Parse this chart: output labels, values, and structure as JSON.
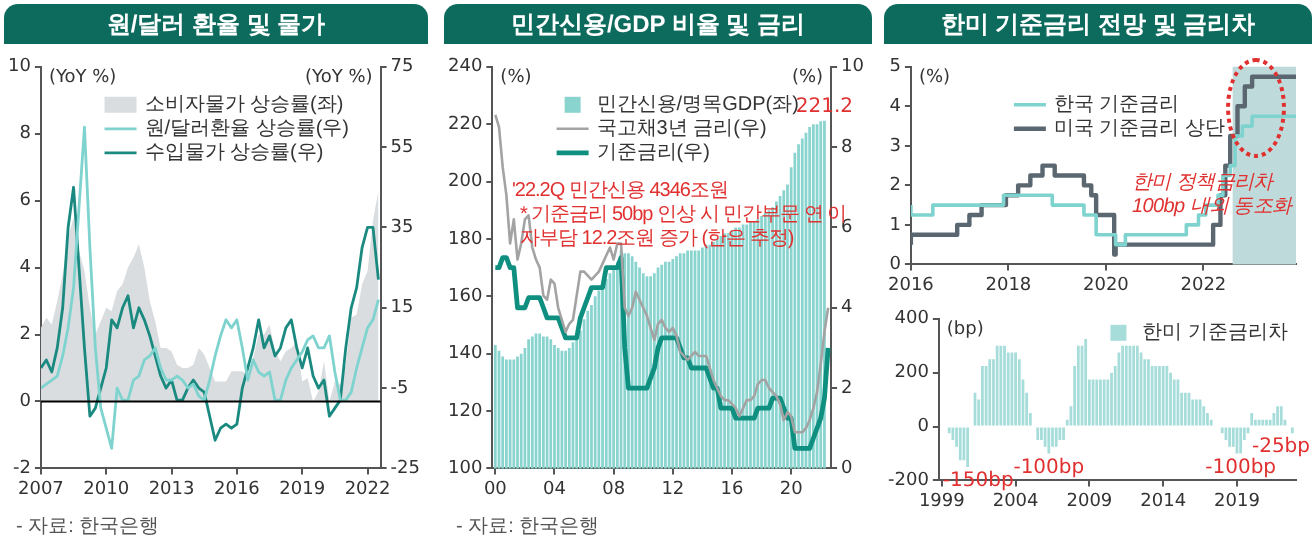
{
  "chart_data": [
    {
      "type": "line",
      "title": "원/달러 환율 및 물가",
      "ylabel": "(YoY %)",
      "y2label": "(YoY %)",
      "marker": "none",
      "legend": "top",
      "grid": false,
      "x": [
        2007,
        2007.25,
        2007.5,
        2007.75,
        2008,
        2008.25,
        2008.5,
        2008.75,
        2009,
        2009.25,
        2009.5,
        2009.75,
        2010,
        2010.25,
        2010.5,
        2010.75,
        2011,
        2011.25,
        2011.5,
        2011.75,
        2012,
        2012.25,
        2012.5,
        2012.75,
        2013,
        2013.25,
        2013.5,
        2013.75,
        2014,
        2014.25,
        2014.5,
        2014.75,
        2015,
        2015.25,
        2015.5,
        2015.75,
        2016,
        2016.25,
        2016.5,
        2016.75,
        2017,
        2017.25,
        2017.5,
        2017.75,
        2018,
        2018.25,
        2018.5,
        2018.75,
        2019,
        2019.25,
        2019.5,
        2019.75,
        2020,
        2020.25,
        2020.5,
        2020.75,
        2021,
        2021.25,
        2021.5,
        2021.75,
        2022,
        2022.25,
        2022.5
      ],
      "xlim": [
        2007,
        2022.6
      ],
      "xticks": [
        2007,
        2010,
        2013,
        2016,
        2019,
        2022
      ],
      "ylim": [
        -2,
        10
      ],
      "yticks": [
        -2,
        0,
        2,
        4,
        6,
        8,
        10
      ],
      "y2lim": [
        -25,
        75
      ],
      "y2ticks": [
        -25,
        -5,
        15,
        35,
        55,
        75
      ],
      "ref_lines": [
        {
          "axis": "y",
          "value": 0,
          "color": "#000000"
        }
      ],
      "series": [
        {
          "name": "소비자물가 상승률(좌)",
          "type": "area",
          "color": "#d9dde0",
          "values": [
            2.2,
            2.5,
            2.3,
            3.0,
            3.8,
            4.9,
            5.5,
            4.5,
            3.9,
            2.8,
            2.0,
            2.4,
            2.8,
            2.7,
            3.3,
            3.5,
            4.0,
            4.3,
            4.7,
            4.0,
            3.0,
            2.4,
            1.6,
            1.6,
            1.5,
            1.1,
            1.0,
            1.0,
            1.1,
            1.6,
            1.4,
            1.0,
            0.6,
            0.6,
            0.6,
            0.9,
            0.9,
            0.9,
            0.8,
            1.3,
            2.0,
            2.0,
            2.3,
            1.5,
            1.2,
            1.5,
            1.6,
            1.8,
            0.6,
            0.7,
            0.0,
            0.3,
            1.2,
            0.0,
            0.6,
            0.5,
            1.1,
            2.5,
            2.6,
            3.5,
            3.9,
            5.4,
            6.3
          ]
        },
        {
          "name": "원/달러환율 상승률(우)",
          "axis": "y2",
          "color": "#7fd3cf",
          "values": [
            -5,
            -4,
            -3,
            -2,
            3,
            10,
            20,
            40,
            60,
            30,
            5,
            -10,
            -15,
            -20,
            -5,
            -8,
            -8,
            -3,
            -2,
            2,
            3,
            5,
            0,
            -3,
            -3,
            -2,
            -3,
            -5,
            -4,
            -7,
            -8,
            -3,
            3,
            8,
            12,
            10,
            12,
            5,
            -3,
            2,
            -1,
            -2,
            -1,
            -8,
            -8,
            -3,
            0,
            2,
            4,
            7,
            8,
            5,
            5,
            8,
            -1,
            -8,
            -8,
            -6,
            0,
            5,
            10,
            12,
            17
          ]
        },
        {
          "name": "수입물가 상승률(우)",
          "axis": "y2",
          "color": "#1a8a80",
          "values": [
            0,
            2,
            -1,
            5,
            15,
            35,
            45,
            25,
            5,
            -12,
            -10,
            -5,
            0,
            12,
            10,
            15,
            18,
            10,
            15,
            12,
            8,
            3,
            -2,
            -5,
            -3,
            -8,
            -8,
            -5,
            -3,
            -5,
            -6,
            -12,
            -18,
            -15,
            -14,
            -15,
            -14,
            -5,
            0,
            5,
            12,
            5,
            8,
            3,
            5,
            10,
            12,
            5,
            0,
            5,
            -2,
            -5,
            -3,
            -12,
            -10,
            -8,
            5,
            15,
            20,
            30,
            35,
            35,
            22
          ]
        }
      ],
      "annotations": [
        "- 자료: 한국은행"
      ]
    },
    {
      "type": "bar",
      "title": "민간신용/GDP 비율 및 금리",
      "ylabel": "(%)",
      "y2label": "(%)",
      "marker": "none",
      "legend": "top",
      "grid": false,
      "x": [
        2000,
        2000.25,
        2000.5,
        2000.75,
        2001,
        2001.25,
        2001.5,
        2001.75,
        2002,
        2002.25,
        2002.5,
        2002.75,
        2003,
        2003.25,
        2003.5,
        2003.75,
        2004,
        2004.25,
        2004.5,
        2004.75,
        2005,
        2005.25,
        2005.5,
        2005.75,
        2006,
        2006.25,
        2006.5,
        2006.75,
        2007,
        2007.25,
        2007.5,
        2007.75,
        2008,
        2008.25,
        2008.5,
        2008.75,
        2009,
        2009.25,
        2009.5,
        2009.75,
        2010,
        2010.25,
        2010.5,
        2010.75,
        2011,
        2011.25,
        2011.5,
        2011.75,
        2012,
        2012.25,
        2012.5,
        2012.75,
        2013,
        2013.25,
        2013.5,
        2013.75,
        2014,
        2014.25,
        2014.5,
        2014.75,
        2015,
        2015.25,
        2015.5,
        2015.75,
        2016,
        2016.25,
        2016.5,
        2016.75,
        2017,
        2017.25,
        2017.5,
        2017.75,
        2018,
        2018.25,
        2018.5,
        2018.75,
        2019,
        2019.25,
        2019.5,
        2019.75,
        2020,
        2020.25,
        2020.5,
        2020.75,
        2021,
        2021.25,
        2021.5,
        2021.75,
        2022,
        2022.25,
        2022.5
      ],
      "xlim": [
        1999.8,
        2022.7
      ],
      "xticks": [
        {
          "value": 2000,
          "label": "00"
        },
        {
          "value": 2004,
          "label": "04"
        },
        {
          "value": 2008,
          "label": "08"
        },
        {
          "value": 2012,
          "label": "12"
        },
        {
          "value": 2016,
          "label": "16"
        },
        {
          "value": 2020,
          "label": "20"
        }
      ],
      "ylim": [
        100,
        240
      ],
      "yticks": [
        100,
        120,
        140,
        160,
        180,
        200,
        220,
        240
      ],
      "y2lim": [
        0,
        10
      ],
      "y2ticks": [
        0,
        2,
        4,
        6,
        8,
        10
      ],
      "series": [
        {
          "name": "민간신용/명목GDP(좌)",
          "color": "#8ad4d0",
          "values": [
            143,
            141,
            139,
            138,
            138,
            138,
            139,
            140,
            142,
            145,
            146,
            147,
            147,
            146,
            146,
            145,
            143,
            142,
            141,
            141,
            142,
            144,
            146,
            148,
            152,
            155,
            157,
            160,
            162,
            164,
            166,
            168,
            170,
            172,
            176,
            175,
            175,
            174,
            172,
            170,
            168,
            167,
            167,
            168,
            170,
            171,
            172,
            172,
            173,
            174,
            175,
            175,
            176,
            176,
            176,
            176,
            177,
            178,
            178,
            179,
            180,
            181,
            182,
            182,
            183,
            184,
            184,
            185,
            185,
            186,
            186,
            187,
            188,
            189,
            190,
            191,
            193,
            195,
            197,
            199,
            205,
            210,
            213,
            215,
            217,
            219,
            220,
            220,
            221,
            221.2,
            null
          ]
        },
        {
          "name": "국고채3년 금리(우)",
          "type": "line",
          "axis": "y2",
          "color": "#a3a3a3",
          "values": [
            8.8,
            8.5,
            7.5,
            6.8,
            5.6,
            6.2,
            5.2,
            5.6,
            6.2,
            6.3,
            5.5,
            5.2,
            5.0,
            4.3,
            4.2,
            4.7,
            4.6,
            4.0,
            3.7,
            3.4,
            3.6,
            3.7,
            4.3,
            4.9,
            4.9,
            4.8,
            4.7,
            4.8,
            4.9,
            5.1,
            5.3,
            5.5,
            5.2,
            5.6,
            5.6,
            4.0,
            3.8,
            4.0,
            4.4,
            4.2,
            4.0,
            3.8,
            3.5,
            3.2,
            3.6,
            3.7,
            3.5,
            3.4,
            3.5,
            3.3,
            2.9,
            2.8,
            2.7,
            2.8,
            2.9,
            2.8,
            2.8,
            2.8,
            2.5,
            2.2,
            2.0,
            1.8,
            1.7,
            1.7,
            1.6,
            1.5,
            1.3,
            1.5,
            1.7,
            1.7,
            1.8,
            2.1,
            2.2,
            2.2,
            2.0,
            1.9,
            1.8,
            1.6,
            1.2,
            1.4,
            1.3,
            0.9,
            0.9,
            0.9,
            1.0,
            1.2,
            1.5,
            1.9,
            2.6,
            3.4,
            4.0
          ]
        },
        {
          "name": "기준금리(우)",
          "type": "line",
          "axis": "y2",
          "color": "#0f8f80",
          "values": [
            5.0,
            5.0,
            5.25,
            5.25,
            5.0,
            5.0,
            4.0,
            4.0,
            4.0,
            4.25,
            4.25,
            4.25,
            4.25,
            4.0,
            3.75,
            3.75,
            3.75,
            3.75,
            3.5,
            3.25,
            3.25,
            3.25,
            3.25,
            3.75,
            4.0,
            4.25,
            4.5,
            4.5,
            4.5,
            4.5,
            5.0,
            5.0,
            5.0,
            5.0,
            5.25,
            3.0,
            2.0,
            2.0,
            2.0,
            2.0,
            2.0,
            2.0,
            2.25,
            2.5,
            3.0,
            3.25,
            3.25,
            3.25,
            3.25,
            3.25,
            3.0,
            2.75,
            2.75,
            2.5,
            2.5,
            2.5,
            2.5,
            2.5,
            2.25,
            2.0,
            2.0,
            1.5,
            1.5,
            1.5,
            1.5,
            1.25,
            1.25,
            1.25,
            1.25,
            1.25,
            1.25,
            1.5,
            1.5,
            1.5,
            1.5,
            1.75,
            1.75,
            1.75,
            1.5,
            1.25,
            1.25,
            0.5,
            0.5,
            0.5,
            0.5,
            0.5,
            0.75,
            1.0,
            1.25,
            1.75,
            3.0
          ]
        }
      ],
      "annotations": [
        "'22.2Q 민간신용 4346조원",
        "* 기준금리 50bp 인상 시 민간부문 연 이자부담 12.2조원 증가 (한은 추정)",
        {
          "text": "221.2",
          "x": 2022.25,
          "y": 221.2
        },
        "- 자료: 한국은행"
      ]
    },
    {
      "type": "step",
      "title": "한미 기준금리 전망 및 금리차",
      "ylabel": "(%)",
      "marker": "none",
      "legend": "top",
      "grid": false,
      "xlim": [
        2016,
        2023.9
      ],
      "xticks": [
        2016,
        2018,
        2020,
        2022
      ],
      "ylim": [
        0,
        5
      ],
      "yticks": [
        0,
        1,
        2,
        3,
        4,
        5
      ],
      "bands": [
        {
          "axis": "x",
          "from": 2022.6,
          "to": 2023.9,
          "color": "#bfdadb"
        }
      ],
      "series": [
        {
          "name": "한국 기준금리",
          "color": "#7fd3cf",
          "x": [
            2016,
            2016.45,
            2017.9,
            2018.9,
            2019.55,
            2019.8,
            2020.2,
            2020.4,
            2021.65,
            2021.9,
            2022.05,
            2022.3,
            2022.4,
            2022.55,
            2022.65,
            2022.8,
            2023.0,
            2023.2,
            2023.9
          ],
          "values": [
            1.5,
            1.25,
            1.5,
            1.75,
            1.5,
            1.25,
            0.75,
            0.5,
            0.75,
            1.0,
            1.25,
            1.5,
            1.75,
            2.25,
            2.5,
            3.25,
            3.5,
            3.75,
            3.75
          ]
        },
        {
          "name": "미국 기준금리 상단",
          "color": "#5a6670",
          "x": [
            2016,
            2016.95,
            2017.2,
            2017.45,
            2017.95,
            2018.2,
            2018.45,
            2018.7,
            2018.95,
            2019.55,
            2019.7,
            2019.8,
            2020.17,
            2020.2,
            2022.2,
            2022.35,
            2022.45,
            2022.55,
            2022.7,
            2022.85,
            2023.0,
            2023.2,
            2023.9
          ],
          "values": [
            0.5,
            0.75,
            1.0,
            1.25,
            1.5,
            1.75,
            2.0,
            2.25,
            2.5,
            2.25,
            2.0,
            1.75,
            1.25,
            0.25,
            0.5,
            1.0,
            1.75,
            2.5,
            3.25,
            4.0,
            4.5,
            4.75,
            4.75
          ]
        }
      ],
      "annotations": [
        "한미 정책금리차 100bp 내외 동조화"
      ]
    },
    {
      "type": "bar",
      "ylabel": "(bp)",
      "legend": "top right",
      "grid": false,
      "x": [
        1999,
        1999.25,
        1999.5,
        1999.75,
        2000,
        2000.25,
        2000.5,
        2000.75,
        2001,
        2001.25,
        2001.5,
        2001.75,
        2002,
        2002.25,
        2002.5,
        2002.75,
        2003,
        2003.25,
        2003.5,
        2003.75,
        2004,
        2004.25,
        2004.5,
        2004.75,
        2005,
        2005.25,
        2005.5,
        2005.75,
        2006,
        2006.25,
        2006.5,
        2006.75,
        2007,
        2007.25,
        2007.5,
        2007.75,
        2008,
        2008.25,
        2008.5,
        2008.75,
        2009,
        2009.25,
        2009.5,
        2009.75,
        2010,
        2010.25,
        2010.5,
        2010.75,
        2011,
        2011.25,
        2011.5,
        2011.75,
        2012,
        2012.25,
        2012.5,
        2012.75,
        2013,
        2013.25,
        2013.5,
        2013.75,
        2014,
        2014.25,
        2014.5,
        2014.75,
        2015,
        2015.25,
        2015.5,
        2015.75,
        2016,
        2016.25,
        2016.5,
        2016.75,
        2017,
        2017.25,
        2017.5,
        2017.75,
        2018,
        2018.25,
        2018.5,
        2018.75,
        2019,
        2019.25,
        2019.5,
        2019.75,
        2020,
        2020.25,
        2020.5,
        2020.75,
        2021,
        2021.25,
        2021.5,
        2021.75,
        2022,
        2022.25,
        2022.5,
        2022.75
      ],
      "xlim": [
        1998.8,
        2023
      ],
      "xticks": [
        1999,
        2004,
        2009,
        2014,
        2019
      ],
      "ylim": [
        -200,
        400
      ],
      "yticks": [
        -200,
        0,
        200,
        400
      ],
      "series": [
        {
          "name": "한미 기준금리차",
          "color": "#a6dcd9",
          "values": [
            0,
            0,
            -25,
            -50,
            -75,
            -125,
            -125,
            -150,
            0,
            125,
            100,
            225,
            225,
            250,
            250,
            300,
            300,
            300,
            275,
            275,
            275,
            250,
            175,
            125,
            50,
            0,
            -50,
            -50,
            -75,
            -100,
            -75,
            -75,
            -50,
            -50,
            25,
            75,
            225,
            300,
            300,
            325,
            175,
            175,
            175,
            175,
            175,
            175,
            200,
            225,
            275,
            300,
            300,
            300,
            300,
            300,
            275,
            250,
            250,
            225,
            225,
            225,
            225,
            225,
            200,
            175,
            175,
            125,
            125,
            125,
            100,
            100,
            100,
            75,
            50,
            25,
            0,
            0,
            -25,
            -50,
            -75,
            -75,
            -100,
            -100,
            -50,
            -25,
            50,
            25,
            25,
            25,
            25,
            25,
            50,
            75,
            75,
            25,
            0,
            -25
          ]
        }
      ],
      "annotations": [
        {
          "text": "-150bp",
          "x": 2000.75,
          "y": -150
        },
        {
          "text": "-100bp",
          "x": 2006.25,
          "y": -100
        },
        {
          "text": "-100bp",
          "x": 2019.25,
          "y": -100
        },
        {
          "text": "-25bp",
          "x": 2022.75,
          "y": -25
        }
      ]
    }
  ]
}
